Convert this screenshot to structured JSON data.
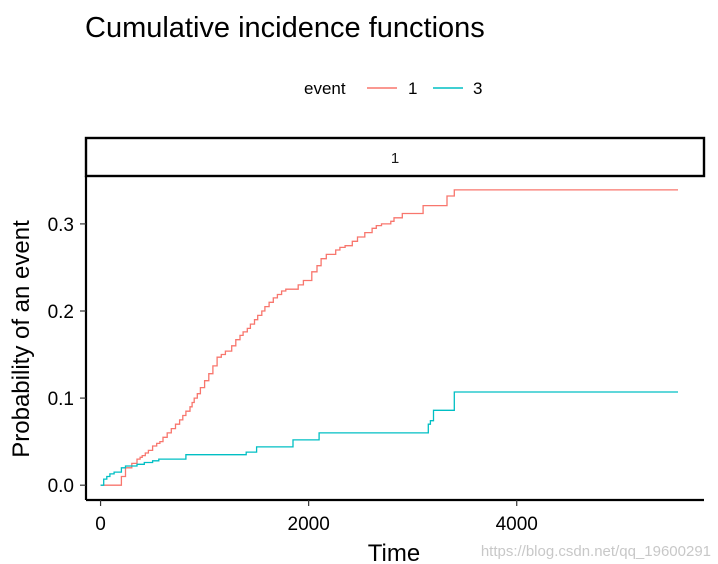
{
  "chart_data": {
    "type": "line",
    "title": "Cumulative incidence functions",
    "xlabel": "Time",
    "ylabel": "Probability of an event",
    "xlim": [
      -140,
      5800
    ],
    "ylim": [
      -0.017,
      0.355
    ],
    "x_ticks": [
      0,
      2000,
      4000
    ],
    "x_tick_labels": [
      "0",
      "2000",
      "4000"
    ],
    "y_ticks": [
      0.0,
      0.1,
      0.2,
      0.3
    ],
    "y_tick_labels": [
      "0.0",
      "0.1",
      "0.2",
      "0.3"
    ],
    "grid": false,
    "legend": {
      "title": "event",
      "placement": "top"
    },
    "facet_label": "1",
    "step": true,
    "series": [
      {
        "name": "1",
        "color": "#F8766D",
        "x": [
          0,
          200,
          240,
          300,
          350,
          380,
          400,
          430,
          460,
          500,
          540,
          570,
          600,
          640,
          680,
          720,
          760,
          790,
          820,
          860,
          880,
          900,
          930,
          960,
          1000,
          1040,
          1080,
          1120,
          1160,
          1200,
          1260,
          1300,
          1340,
          1370,
          1410,
          1440,
          1480,
          1510,
          1550,
          1580,
          1620,
          1660,
          1700,
          1740,
          1780,
          1900,
          1950,
          2030,
          2080,
          2120,
          2170,
          2260,
          2300,
          2350,
          2420,
          2470,
          2540,
          2610,
          2650,
          2700,
          2790,
          2820,
          2900,
          3100,
          3330,
          3400,
          5550
        ],
        "y": [
          0.0,
          0.01,
          0.02,
          0.025,
          0.03,
          0.032,
          0.034,
          0.037,
          0.04,
          0.045,
          0.048,
          0.05,
          0.055,
          0.06,
          0.065,
          0.07,
          0.075,
          0.08,
          0.085,
          0.09,
          0.095,
          0.1,
          0.105,
          0.112,
          0.12,
          0.128,
          0.137,
          0.147,
          0.15,
          0.154,
          0.16,
          0.167,
          0.172,
          0.176,
          0.18,
          0.185,
          0.19,
          0.195,
          0.2,
          0.205,
          0.21,
          0.215,
          0.219,
          0.223,
          0.225,
          0.23,
          0.235,
          0.245,
          0.252,
          0.26,
          0.265,
          0.27,
          0.273,
          0.275,
          0.28,
          0.285,
          0.29,
          0.295,
          0.298,
          0.3,
          0.303,
          0.307,
          0.312,
          0.321,
          0.332,
          0.339,
          0.339
        ]
      },
      {
        "name": "3",
        "color": "#00BFC4",
        "x": [
          0,
          30,
          60,
          90,
          130,
          200,
          240,
          350,
          420,
          500,
          560,
          820,
          1400,
          1500,
          1850,
          2100,
          3150,
          3170,
          3200,
          3400,
          5550
        ],
        "y": [
          0.0,
          0.007,
          0.01,
          0.013,
          0.015,
          0.02,
          0.022,
          0.024,
          0.026,
          0.028,
          0.03,
          0.035,
          0.038,
          0.044,
          0.052,
          0.06,
          0.07,
          0.074,
          0.086,
          0.107,
          0.107
        ]
      }
    ],
    "watermark": "https://blog.csdn.net/qq_19600291"
  }
}
